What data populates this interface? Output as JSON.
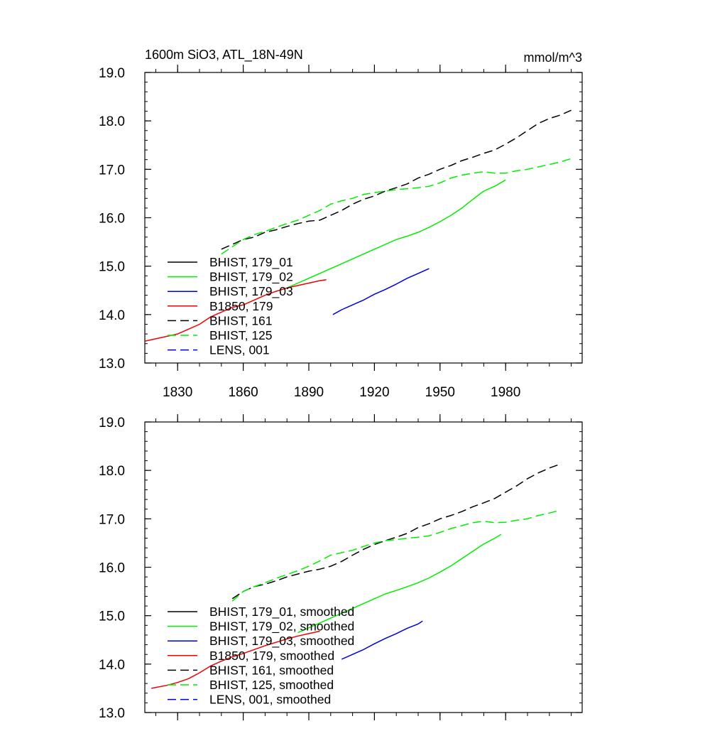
{
  "chart_data": [
    {
      "type": "line",
      "title": "1600m SiO3, ATL_18N-49N",
      "units": "mmol/m^3",
      "xlim": [
        1815,
        2015
      ],
      "ylim": [
        13.0,
        19.0
      ],
      "xticks": [
        1830,
        1860,
        1890,
        1920,
        1950,
        1980
      ],
      "xtick_labels": [
        "1830",
        "1860",
        "1890",
        "1920",
        "1950",
        "1980"
      ],
      "yticks": [
        13,
        14,
        15,
        16,
        17,
        18,
        19
      ],
      "ytick_labels": [
        "13.0",
        "14.0",
        "15.0",
        "16.0",
        "17.0",
        "18.0",
        "19.0"
      ],
      "legend_position": "lower-left",
      "series": [
        {
          "name": "BHIST, 179_01",
          "color": "#000000",
          "dash": "solid",
          "points": []
        },
        {
          "name": "BHIST, 179_02",
          "color": "#00ee00",
          "dash": "solid",
          "points": [
            [
              1880,
              14.55
            ],
            [
              1885,
              14.65
            ],
            [
              1890,
              14.75
            ],
            [
              1895,
              14.85
            ],
            [
              1900,
              14.95
            ],
            [
              1905,
              15.05
            ],
            [
              1910,
              15.15
            ],
            [
              1915,
              15.25
            ],
            [
              1920,
              15.35
            ],
            [
              1925,
              15.45
            ],
            [
              1930,
              15.55
            ],
            [
              1935,
              15.62
            ],
            [
              1940,
              15.7
            ],
            [
              1945,
              15.8
            ],
            [
              1950,
              15.92
            ],
            [
              1955,
              16.05
            ],
            [
              1960,
              16.2
            ],
            [
              1965,
              16.38
            ],
            [
              1970,
              16.55
            ],
            [
              1975,
              16.65
            ],
            [
              1980,
              16.78
            ]
          ]
        },
        {
          "name": "BHIST, 179_03",
          "color": "#0000dd",
          "dash": "solid",
          "points": [
            [
              1901,
              14.0
            ],
            [
              1905,
              14.1
            ],
            [
              1910,
              14.2
            ],
            [
              1915,
              14.3
            ],
            [
              1920,
              14.42
            ],
            [
              1925,
              14.52
            ],
            [
              1930,
              14.63
            ],
            [
              1935,
              14.75
            ],
            [
              1940,
              14.85
            ],
            [
              1945,
              14.95
            ]
          ]
        },
        {
          "name": "B1850, 179",
          "color": "#ee0000",
          "dash": "solid",
          "points": [
            [
              1815,
              13.45
            ],
            [
              1820,
              13.5
            ],
            [
              1825,
              13.55
            ],
            [
              1830,
              13.6
            ],
            [
              1835,
              13.7
            ],
            [
              1840,
              13.8
            ],
            [
              1845,
              13.95
            ],
            [
              1850,
              14.05
            ],
            [
              1855,
              14.15
            ],
            [
              1860,
              14.2
            ],
            [
              1865,
              14.3
            ],
            [
              1870,
              14.4
            ],
            [
              1875,
              14.48
            ],
            [
              1880,
              14.55
            ],
            [
              1885,
              14.6
            ],
            [
              1890,
              14.65
            ],
            [
              1895,
              14.7
            ],
            [
              1898,
              14.72
            ]
          ]
        },
        {
          "name": "BHIST, 161",
          "color": "#000000",
          "dash": "dashed",
          "points": [
            [
              1850,
              15.35
            ],
            [
              1855,
              15.45
            ],
            [
              1860,
              15.55
            ],
            [
              1865,
              15.6
            ],
            [
              1870,
              15.7
            ],
            [
              1875,
              15.75
            ],
            [
              1880,
              15.82
            ],
            [
              1885,
              15.88
            ],
            [
              1890,
              15.93
            ],
            [
              1895,
              15.95
            ],
            [
              1900,
              16.05
            ],
            [
              1905,
              16.15
            ],
            [
              1910,
              16.28
            ],
            [
              1915,
              16.38
            ],
            [
              1920,
              16.45
            ],
            [
              1925,
              16.55
            ],
            [
              1930,
              16.62
            ],
            [
              1935,
              16.7
            ],
            [
              1940,
              16.82
            ],
            [
              1945,
              16.9
            ],
            [
              1950,
              17.0
            ],
            [
              1955,
              17.08
            ],
            [
              1960,
              17.18
            ],
            [
              1965,
              17.25
            ],
            [
              1970,
              17.33
            ],
            [
              1975,
              17.4
            ],
            [
              1980,
              17.52
            ],
            [
              1985,
              17.65
            ],
            [
              1990,
              17.8
            ],
            [
              1995,
              17.95
            ],
            [
              2000,
              18.05
            ],
            [
              2005,
              18.12
            ],
            [
              2010,
              18.22
            ]
          ]
        },
        {
          "name": "BHIST, 125",
          "color": "#00ee00",
          "dash": "dashed",
          "points": [
            [
              1850,
              15.25
            ],
            [
              1855,
              15.4
            ],
            [
              1860,
              15.55
            ],
            [
              1865,
              15.65
            ],
            [
              1870,
              15.72
            ],
            [
              1875,
              15.8
            ],
            [
              1880,
              15.88
            ],
            [
              1885,
              15.95
            ],
            [
              1890,
              16.05
            ],
            [
              1895,
              16.15
            ],
            [
              1900,
              16.28
            ],
            [
              1905,
              16.35
            ],
            [
              1910,
              16.4
            ],
            [
              1915,
              16.48
            ],
            [
              1920,
              16.52
            ],
            [
              1925,
              16.55
            ],
            [
              1930,
              16.58
            ],
            [
              1935,
              16.6
            ],
            [
              1940,
              16.62
            ],
            [
              1945,
              16.65
            ],
            [
              1950,
              16.72
            ],
            [
              1955,
              16.82
            ],
            [
              1960,
              16.88
            ],
            [
              1965,
              16.92
            ],
            [
              1970,
              16.95
            ],
            [
              1975,
              16.92
            ],
            [
              1980,
              16.92
            ],
            [
              1985,
              16.97
            ],
            [
              1990,
              17.0
            ],
            [
              1995,
              17.05
            ],
            [
              2000,
              17.1
            ],
            [
              2005,
              17.15
            ],
            [
              2010,
              17.22
            ]
          ]
        },
        {
          "name": "LENS, 001",
          "color": "#0000dd",
          "dash": "dashed",
          "points": []
        }
      ]
    },
    {
      "type": "line",
      "xlim": [
        1815,
        2015
      ],
      "ylim": [
        13.0,
        19.0
      ],
      "xticks": [
        1830,
        1860,
        1890,
        1920,
        1950,
        1980
      ],
      "yticks": [
        13,
        14,
        15,
        16,
        17,
        18,
        19
      ],
      "ytick_labels": [
        "13.0",
        "14.0",
        "15.0",
        "16.0",
        "17.0",
        "18.0",
        "19.0"
      ],
      "legend_position": "lower-left",
      "series": [
        {
          "name": "BHIST, 179_01, smoothed",
          "color": "#000000",
          "dash": "solid",
          "points": []
        },
        {
          "name": "BHIST, 179_02, smoothed",
          "color": "#00ee00",
          "dash": "solid",
          "points": [
            [
              1885,
              14.65
            ],
            [
              1890,
              14.75
            ],
            [
              1895,
              14.85
            ],
            [
              1900,
              14.95
            ],
            [
              1905,
              15.05
            ],
            [
              1910,
              15.15
            ],
            [
              1915,
              15.25
            ],
            [
              1920,
              15.35
            ],
            [
              1925,
              15.45
            ],
            [
              1930,
              15.52
            ],
            [
              1935,
              15.6
            ],
            [
              1940,
              15.68
            ],
            [
              1945,
              15.78
            ],
            [
              1950,
              15.9
            ],
            [
              1955,
              16.03
            ],
            [
              1960,
              16.18
            ],
            [
              1965,
              16.33
            ],
            [
              1970,
              16.48
            ],
            [
              1975,
              16.6
            ],
            [
              1978,
              16.68
            ]
          ]
        },
        {
          "name": "BHIST, 179_03, smoothed",
          "color": "#0000dd",
          "dash": "solid",
          "points": [
            [
              1905,
              14.1
            ],
            [
              1910,
              14.2
            ],
            [
              1915,
              14.3
            ],
            [
              1920,
              14.42
            ],
            [
              1925,
              14.53
            ],
            [
              1930,
              14.63
            ],
            [
              1935,
              14.74
            ],
            [
              1940,
              14.83
            ],
            [
              1942,
              14.89
            ]
          ]
        },
        {
          "name": "B1850, 179, smoothed",
          "color": "#ee0000",
          "dash": "solid",
          "points": [
            [
              1818,
              13.5
            ],
            [
              1825,
              13.56
            ],
            [
              1830,
              13.62
            ],
            [
              1835,
              13.7
            ],
            [
              1840,
              13.82
            ],
            [
              1845,
              13.96
            ],
            [
              1850,
              14.06
            ],
            [
              1855,
              14.15
            ],
            [
              1860,
              14.22
            ],
            [
              1865,
              14.3
            ],
            [
              1870,
              14.38
            ],
            [
              1875,
              14.45
            ],
            [
              1880,
              14.52
            ],
            [
              1885,
              14.58
            ],
            [
              1890,
              14.63
            ],
            [
              1895,
              14.68
            ]
          ]
        },
        {
          "name": "BHIST, 161, smoothed",
          "color": "#000000",
          "dash": "dashed",
          "points": [
            [
              1855,
              15.35
            ],
            [
              1860,
              15.5
            ],
            [
              1865,
              15.6
            ],
            [
              1870,
              15.65
            ],
            [
              1875,
              15.72
            ],
            [
              1880,
              15.8
            ],
            [
              1885,
              15.86
            ],
            [
              1890,
              15.92
            ],
            [
              1895,
              15.96
            ],
            [
              1900,
              16.02
            ],
            [
              1905,
              16.12
            ],
            [
              1910,
              16.25
            ],
            [
              1915,
              16.37
            ],
            [
              1920,
              16.47
            ],
            [
              1925,
              16.55
            ],
            [
              1930,
              16.62
            ],
            [
              1935,
              16.7
            ],
            [
              1940,
              16.82
            ],
            [
              1945,
              16.9
            ],
            [
              1950,
              17.0
            ],
            [
              1955,
              17.07
            ],
            [
              1960,
              17.15
            ],
            [
              1965,
              17.25
            ],
            [
              1970,
              17.33
            ],
            [
              1975,
              17.42
            ],
            [
              1980,
              17.55
            ],
            [
              1985,
              17.68
            ],
            [
              1990,
              17.83
            ],
            [
              1995,
              17.95
            ],
            [
              2000,
              18.05
            ],
            [
              2005,
              18.13
            ]
          ]
        },
        {
          "name": "BHIST, 125, smoothed",
          "color": "#00ee00",
          "dash": "dashed",
          "points": [
            [
              1855,
              15.3
            ],
            [
              1860,
              15.5
            ],
            [
              1865,
              15.6
            ],
            [
              1870,
              15.68
            ],
            [
              1875,
              15.77
            ],
            [
              1880,
              15.85
            ],
            [
              1885,
              15.93
            ],
            [
              1890,
              16.02
            ],
            [
              1895,
              16.13
            ],
            [
              1900,
              16.25
            ],
            [
              1905,
              16.3
            ],
            [
              1910,
              16.35
            ],
            [
              1915,
              16.43
            ],
            [
              1920,
              16.5
            ],
            [
              1925,
              16.55
            ],
            [
              1930,
              16.57
            ],
            [
              1935,
              16.6
            ],
            [
              1940,
              16.62
            ],
            [
              1945,
              16.65
            ],
            [
              1950,
              16.72
            ],
            [
              1955,
              16.8
            ],
            [
              1960,
              16.86
            ],
            [
              1965,
              16.92
            ],
            [
              1970,
              16.95
            ],
            [
              1975,
              16.92
            ],
            [
              1980,
              16.93
            ],
            [
              1985,
              16.97
            ],
            [
              1990,
              17.0
            ],
            [
              1995,
              17.07
            ],
            [
              2000,
              17.12
            ],
            [
              2005,
              17.18
            ]
          ]
        },
        {
          "name": "LENS, 001, smoothed",
          "color": "#0000dd",
          "dash": "dashed",
          "points": []
        }
      ]
    }
  ]
}
